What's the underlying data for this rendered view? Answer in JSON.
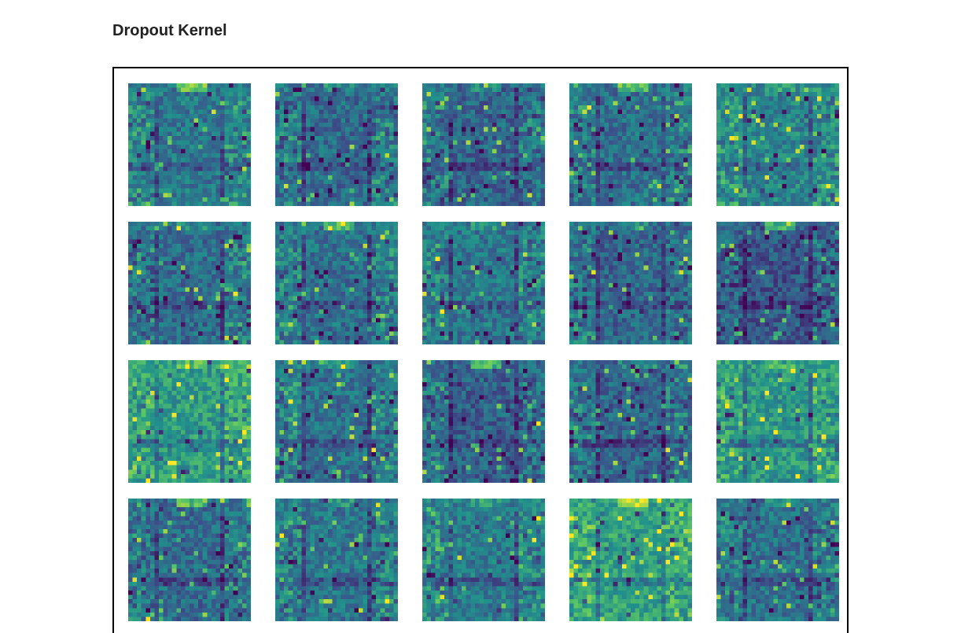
{
  "header": {
    "title": "Dropout Kernel"
  },
  "figure": {
    "rows": 4,
    "cols": 5,
    "colormap": [
      "#440154",
      "#3b528b",
      "#21918c",
      "#5ec962",
      "#fde725"
    ],
    "kernels": [
      {
        "base": 0.45,
        "variant": 1
      },
      {
        "base": 0.4,
        "variant": 2
      },
      {
        "base": 0.38,
        "variant": 3
      },
      {
        "base": 0.42,
        "variant": 4
      },
      {
        "base": 0.5,
        "variant": 5
      },
      {
        "base": 0.4,
        "variant": 6
      },
      {
        "base": 0.42,
        "variant": 7
      },
      {
        "base": 0.44,
        "variant": 8
      },
      {
        "base": 0.38,
        "variant": 9
      },
      {
        "base": 0.32,
        "variant": 10
      },
      {
        "base": 0.6,
        "variant": 11
      },
      {
        "base": 0.42,
        "variant": 12
      },
      {
        "base": 0.36,
        "variant": 13
      },
      {
        "base": 0.38,
        "variant": 14
      },
      {
        "base": 0.58,
        "variant": 15
      },
      {
        "base": 0.4,
        "variant": 16
      },
      {
        "base": 0.44,
        "variant": 17
      },
      {
        "base": 0.46,
        "variant": 18
      },
      {
        "base": 0.62,
        "variant": 19
      },
      {
        "base": 0.42,
        "variant": 20
      }
    ]
  }
}
